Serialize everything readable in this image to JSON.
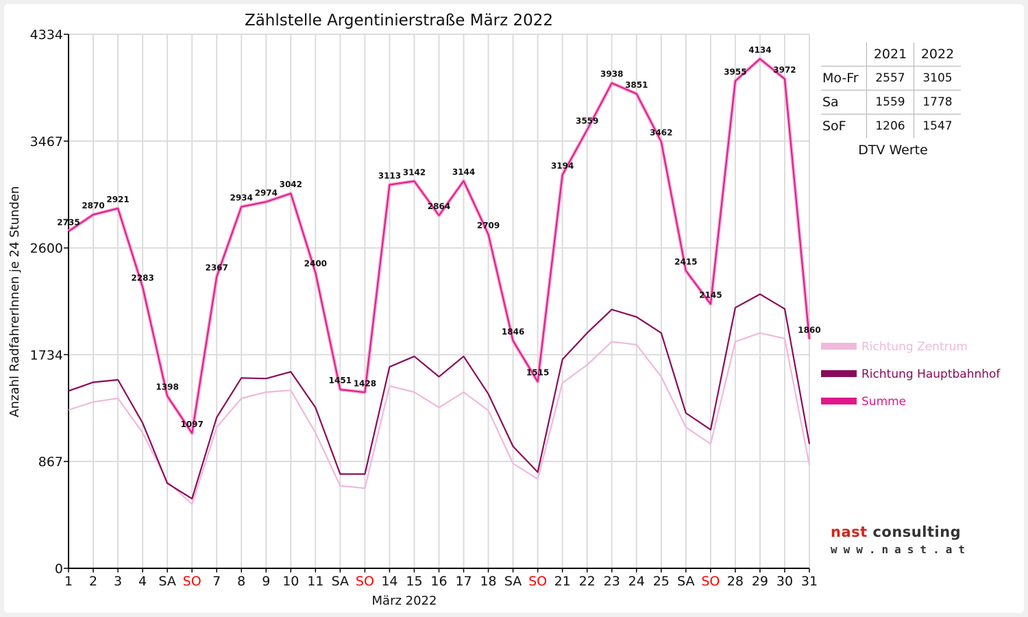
{
  "chart_data": {
    "type": "line",
    "title": "Zählstelle Argentinierstraße März 2022",
    "xlabel": "März 2022",
    "ylabel": "Anzahl RadfahrerInnen je 24 Stunden",
    "ylim": [
      0,
      4334
    ],
    "yticks": [
      0,
      867,
      1734,
      2600,
      3467,
      4334
    ],
    "grid": true,
    "legend_position": "right",
    "categories": [
      "1",
      "2",
      "3",
      "4",
      "SA",
      "SO",
      "7",
      "8",
      "9",
      "10",
      "11",
      "SA",
      "SO",
      "14",
      "15",
      "16",
      "17",
      "18",
      "SA",
      "SO",
      "21",
      "22",
      "23",
      "24",
      "25",
      "SA",
      "SO",
      "28",
      "29",
      "30",
      "31"
    ],
    "highlighted_categories": [
      "SO"
    ],
    "highlight_color": "#ff0000",
    "series": [
      {
        "name": "Richtung Zentrum",
        "color": "#f0b8dc",
        "values": [
          1285,
          1350,
          1380,
          1100,
          705,
          520,
          1145,
          1380,
          1430,
          1445,
          1100,
          670,
          650,
          1480,
          1430,
          1305,
          1430,
          1280,
          850,
          725,
          1505,
          1650,
          1840,
          1815,
          1555,
          1145,
          1010,
          1840,
          1910,
          1865,
          840
        ]
      },
      {
        "name": "Richtung Hauptbahnhof",
        "color": "#8b0a5a",
        "values": [
          1440,
          1510,
          1530,
          1180,
          690,
          565,
          1225,
          1545,
          1540,
          1595,
          1305,
          765,
          765,
          1635,
          1720,
          1555,
          1720,
          1415,
          990,
          780,
          1695,
          1910,
          2100,
          2040,
          1910,
          1260,
          1125,
          2115,
          2225,
          2105,
          1010
        ]
      },
      {
        "name": "Summe",
        "color": "#e0188c",
        "values": [
          2735,
          2870,
          2921,
          2283,
          1398,
          1097,
          2367,
          2934,
          2974,
          3042,
          2400,
          1451,
          1428,
          3113,
          3142,
          2864,
          3144,
          2709,
          1846,
          1515,
          3194,
          3559,
          3938,
          3851,
          3462,
          2415,
          2145,
          3955,
          4134,
          3972,
          1860
        ]
      }
    ],
    "data_labels": [
      "2735",
      "2870",
      "2921",
      "2283",
      "1398",
      "1097",
      "2367",
      "2934",
      "2974",
      "3042",
      "2400",
      "1451",
      "1428",
      "3113",
      "3142",
      "2864",
      "3144",
      "2709",
      "1846",
      "1515",
      "3194",
      "3559",
      "3938",
      "3851",
      "3462",
      "2415",
      "2145",
      "3955",
      "4134",
      "3972",
      "1860"
    ]
  },
  "dtv_table": {
    "caption": "DTV Werte",
    "columns": [
      "2021",
      "2022"
    ],
    "rows": [
      {
        "label": "Mo-Fr",
        "v2021": "2557",
        "v2022": "3105"
      },
      {
        "label": "Sa",
        "v2021": "1559",
        "v2022": "1778"
      },
      {
        "label": "SoF",
        "v2021": "1206",
        "v2022": "1547"
      }
    ]
  },
  "logo": {
    "brand_part1": "nast",
    "brand_part2": " consulting",
    "url": "www.nast.at"
  }
}
